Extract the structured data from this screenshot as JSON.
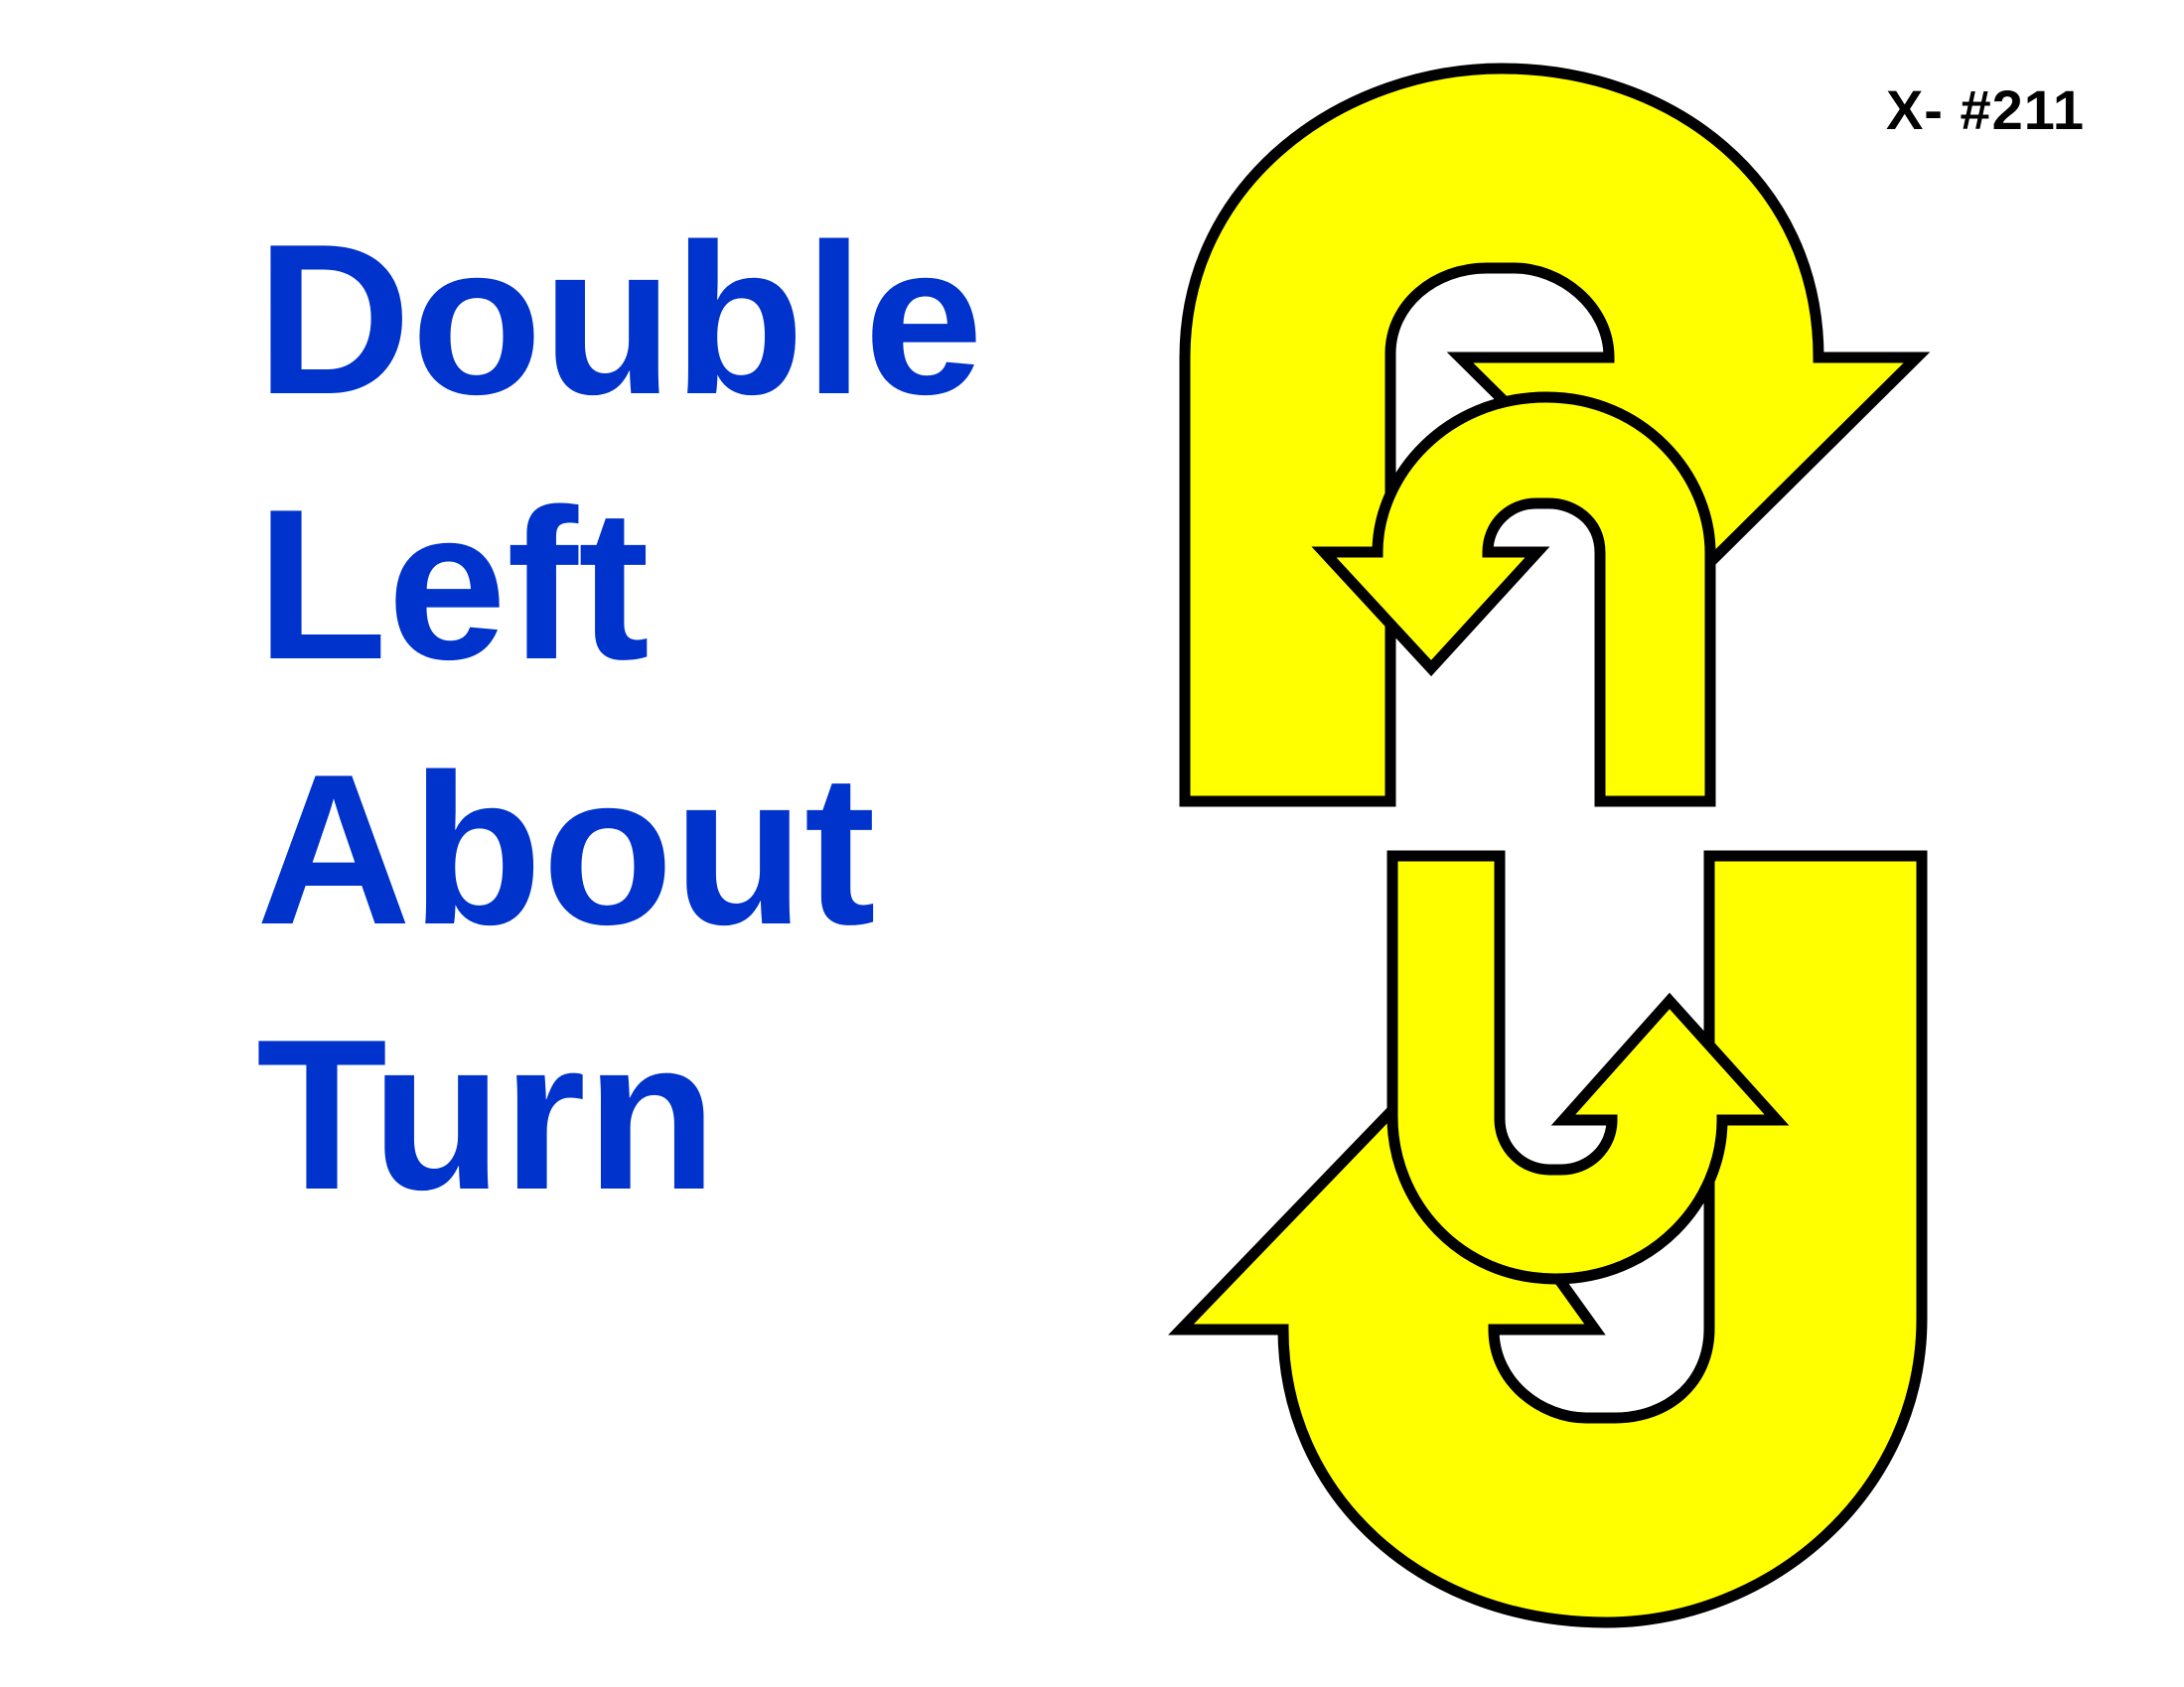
{
  "sign": {
    "number": "X- #211"
  },
  "title": {
    "lines": [
      "Double",
      "Left",
      "About",
      "Turn"
    ]
  },
  "colors": {
    "title_text": "#0033cc",
    "arrow_fill": "#ffff00",
    "arrow_stroke": "#000000",
    "background": "#ffffff"
  },
  "icons": {
    "top": "left-u-turn-arrow-outer",
    "top_inner": "left-u-turn-arrow-inner",
    "bottom": "left-u-turn-arrow-outer-lower",
    "bottom_inner": "left-u-turn-arrow-inner-lower"
  }
}
